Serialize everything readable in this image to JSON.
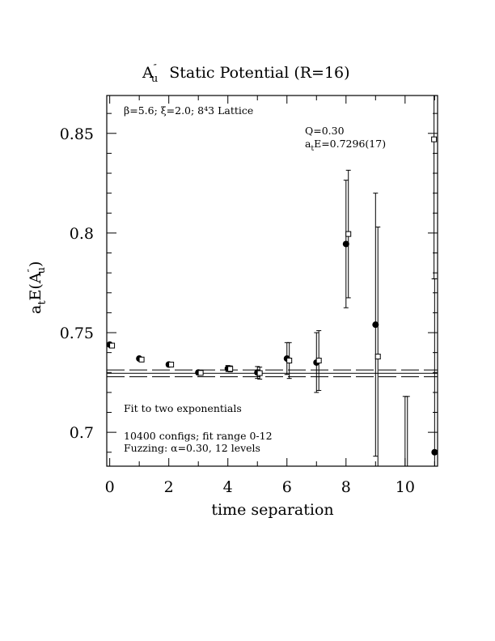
{
  "chart_data": {
    "type": "scatter",
    "title": "A''_u  Static Potential (R=16)",
    "xlabel": "time separation",
    "ylabel": "a_t E(A''_u)",
    "xlim": [
      -0.1,
      11.1
    ],
    "ylim": [
      0.683,
      0.869
    ],
    "xticks": [
      0,
      2,
      4,
      6,
      8,
      10
    ],
    "yticks": [
      0.7,
      0.75,
      0.8,
      0.85
    ],
    "grid": false,
    "annotations": {
      "lattice": "β=5.6; ξ=2.0; 8⁴3 Lattice",
      "q": "Q=0.30",
      "energy": "a_t E=0.7296(17)",
      "fit": "Fit to two exponentials",
      "configs": "10400 configs; fit range 0-12",
      "fuzzing": "Fuzzing: α=0.30, 12 levels"
    },
    "fit_band": {
      "center": 0.7296,
      "error": 0.0017,
      "x_range": [
        -0.1,
        11.1
      ]
    },
    "series": [
      {
        "marker": "filled-circle",
        "points": [
          {
            "x": 0,
            "y": 0.744,
            "err": 0.0008
          },
          {
            "x": 1,
            "y": 0.737,
            "err": 0.0008
          },
          {
            "x": 2,
            "y": 0.734,
            "err": 0.001
          },
          {
            "x": 3,
            "y": 0.73,
            "err": 0.001
          },
          {
            "x": 4,
            "y": 0.732,
            "err": 0.0015
          },
          {
            "x": 5,
            "y": 0.73,
            "err": 0.003
          },
          {
            "x": 6,
            "y": 0.737,
            "err": 0.008
          },
          {
            "x": 7,
            "y": 0.735,
            "err": 0.015
          },
          {
            "x": 8,
            "y": 0.7945,
            "err": 0.032
          },
          {
            "x": 9,
            "y": 0.754,
            "err": 0.066
          },
          {
            "x": 10,
            "y": 0.68,
            "err": 0.038
          },
          {
            "x": 11,
            "y": 0.69,
            "err": 0.087
          }
        ]
      },
      {
        "marker": "open-square",
        "points": [
          {
            "x": 0.08,
            "y": 0.7435,
            "err": 0.0008
          },
          {
            "x": 1.08,
            "y": 0.7365,
            "err": 0.0008
          },
          {
            "x": 2.08,
            "y": 0.734,
            "err": 0.001
          },
          {
            "x": 3.08,
            "y": 0.7298,
            "err": 0.001
          },
          {
            "x": 4.08,
            "y": 0.7318,
            "err": 0.0015
          },
          {
            "x": 5.08,
            "y": 0.7297,
            "err": 0.003
          },
          {
            "x": 6.08,
            "y": 0.736,
            "err": 0.009
          },
          {
            "x": 7.08,
            "y": 0.736,
            "err": 0.015
          },
          {
            "x": 8.08,
            "y": 0.7995,
            "err": 0.032
          },
          {
            "x": 9.08,
            "y": 0.738,
            "err": 0.065
          },
          {
            "x": 10.08,
            "y": 0.68,
            "err": 0.038
          },
          {
            "x": 10.98,
            "y": 0.847,
            "err": 0.07
          }
        ]
      }
    ]
  }
}
